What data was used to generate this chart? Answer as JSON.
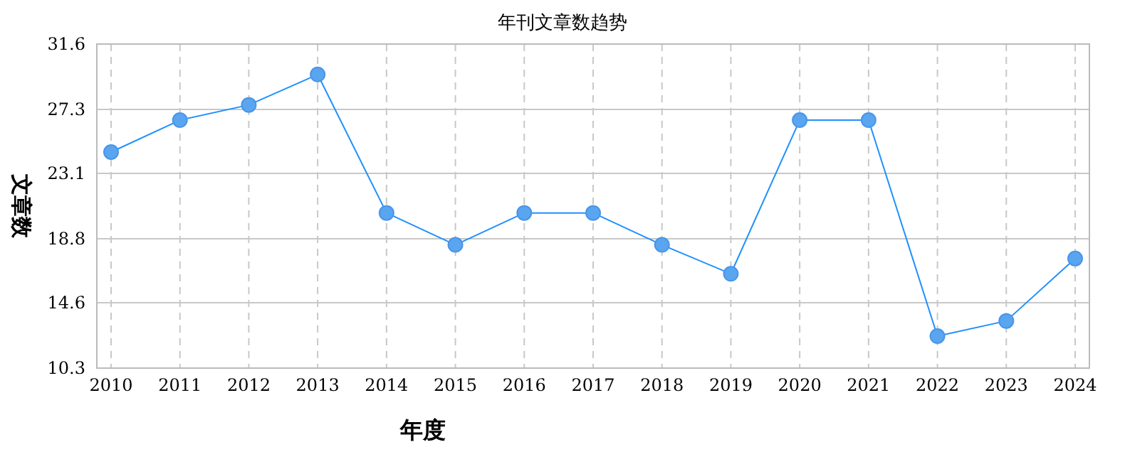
{
  "chart_data": {
    "type": "line",
    "title": "年刊文章数趋势",
    "xlabel": "年度",
    "ylabel": "文章数",
    "categories": [
      "2010",
      "2011",
      "2012",
      "2013",
      "2014",
      "2015",
      "2016",
      "2017",
      "2018",
      "2019",
      "2020",
      "2021",
      "2022",
      "2023",
      "2024"
    ],
    "series": [
      {
        "color": "#1e90ff",
        "values": [
          24.5,
          26.6,
          27.6,
          29.6,
          20.5,
          18.4,
          20.5,
          20.5,
          18.4,
          16.5,
          26.6,
          26.6,
          12.4,
          13.4,
          17.5
        ]
      }
    ],
    "ylim": [
      10.3,
      31.6
    ],
    "yticks": [
      10.3,
      14.6,
      18.8,
      23.1,
      27.3,
      31.6
    ],
    "grid": true,
    "marker": "circle",
    "line_style": "solid"
  }
}
